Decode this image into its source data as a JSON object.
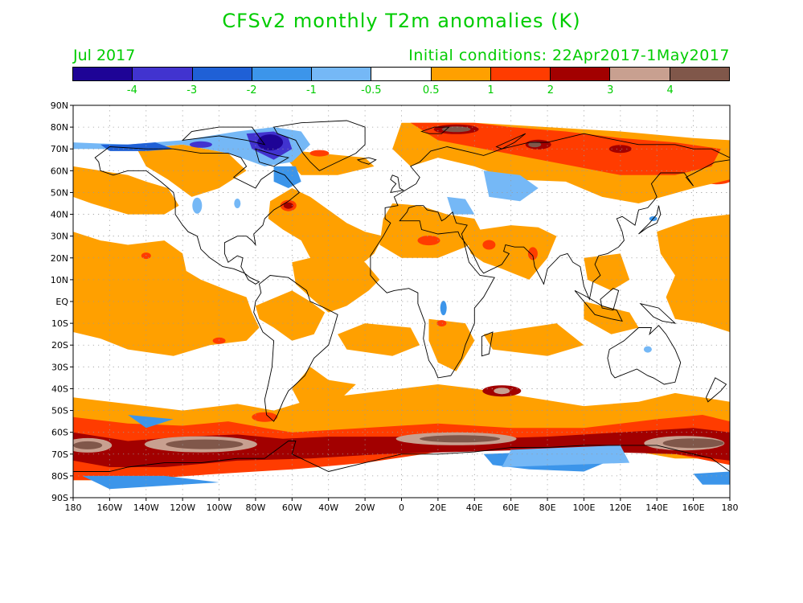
{
  "title": "CFSv2 monthly T2m anomalies (K)",
  "forecast_month": "Jul 2017",
  "initial_conditions": "Initial conditions: 22Apr2017-1May2017",
  "colorbar": {
    "colors": [
      "#1e0496",
      "#4133cf",
      "#1f60d6",
      "#3c95ea",
      "#75b8f6",
      "#ffffff",
      "#ffa000",
      "#ff3c00",
      "#a20000",
      "#c8a090",
      "#80574a"
    ],
    "labels": [
      "-4",
      "-3",
      "-2",
      "-1",
      "-0.5",
      "0.5",
      "1",
      "2",
      "3",
      "4"
    ]
  },
  "axes": {
    "lat_labels": [
      "90N",
      "80N",
      "70N",
      "60N",
      "50N",
      "40N",
      "30N",
      "20N",
      "10N",
      "EQ",
      "10S",
      "20S",
      "30S",
      "40S",
      "50S",
      "60S",
      "70S",
      "80S",
      "90S"
    ],
    "lon_labels": [
      "180",
      "160W",
      "140W",
      "120W",
      "100W",
      "80W",
      "60W",
      "40W",
      "20W",
      "0",
      "20E",
      "40E",
      "60E",
      "80E",
      "100E",
      "120E",
      "140E",
      "160E",
      "180"
    ]
  }
}
